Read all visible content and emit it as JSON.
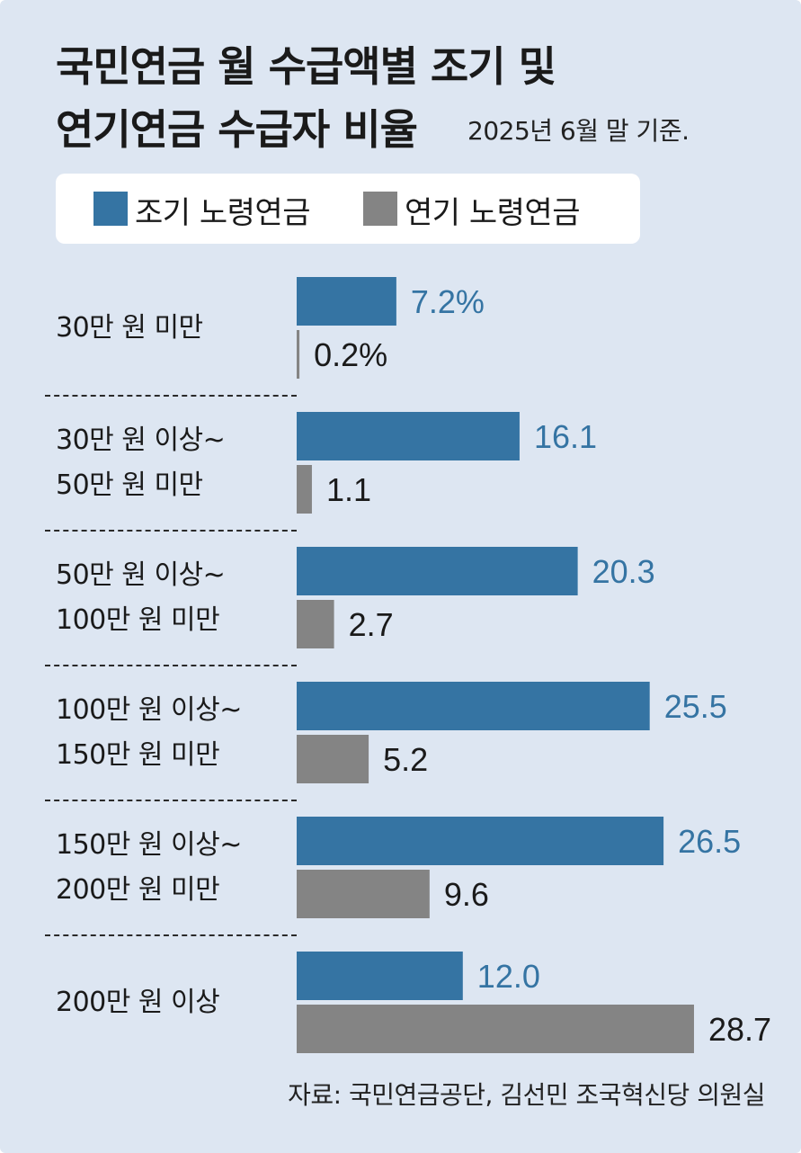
{
  "title_line1": "국민연금 월 수급액별 조기 및",
  "title_line2": "연기연금 수급자 비율",
  "subtitle": "2025년 6월 말 기준.",
  "source": "자료: 국민연금공단, 김선민 조국혁신당 의원실",
  "colors": {
    "early": "#3574a3",
    "deferred": "#848484",
    "background": "#dde6f2"
  },
  "chart_data": {
    "type": "bar",
    "orientation": "horizontal",
    "title": "국민연금 월 수급액별 조기 및 연기연금 수급자 비율",
    "subtitle": "2025년 6월 말 기준.",
    "categories": [
      [
        "30만 원 미만"
      ],
      [
        "30만 원 이상~",
        "50만 원 미만"
      ],
      [
        "50만 원 이상~",
        "100만 원 미만"
      ],
      [
        "100만 원 이상~",
        "150만 원 미만"
      ],
      [
        "150만 원 이상~",
        "200만 원 미만"
      ],
      [
        "200만 원 이상"
      ]
    ],
    "series": [
      {
        "name": "조기 노령연금",
        "values": [
          7.2,
          16.1,
          20.3,
          25.5,
          26.5,
          12.0
        ],
        "labels": [
          "7.2%",
          "16.1",
          "20.3",
          "25.5",
          "26.5",
          "12.0"
        ]
      },
      {
        "name": "연기 노령연금",
        "values": [
          0.2,
          1.1,
          2.7,
          5.2,
          9.6,
          28.7
        ],
        "labels": [
          "0.2%",
          "1.1",
          "2.7",
          "5.2",
          "9.6",
          "28.7"
        ]
      }
    ],
    "legend": "top",
    "unit": "%"
  }
}
